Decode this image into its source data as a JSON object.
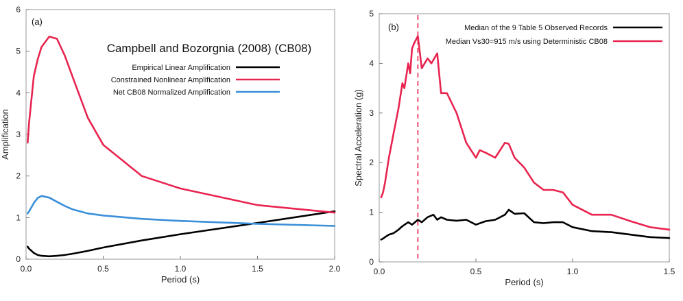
{
  "chart_data": [
    {
      "type": "line",
      "panel_label": "(a)",
      "title": "Campbell and Bozorgnia (2008) (CB08)",
      "xlabel": "Period (s)",
      "ylabel": "Amplification",
      "xlim": [
        0,
        2.0
      ],
      "ylim": [
        0,
        6
      ],
      "xticks": [
        "0.0",
        "0.5",
        "1.0",
        "1.5",
        "2.0"
      ],
      "yticks": [
        "0",
        "1",
        "2",
        "3",
        "4",
        "5",
        "6"
      ],
      "legend_position": "upper-right",
      "grid": false,
      "series": [
        {
          "name": "Empirical Linear Amplification",
          "color": "#000000",
          "x": [
            0.01,
            0.02,
            0.05,
            0.075,
            0.1,
            0.15,
            0.2,
            0.25,
            0.3,
            0.4,
            0.5,
            0.75,
            1.0,
            1.5,
            2.0
          ],
          "y": [
            0.3,
            0.25,
            0.15,
            0.1,
            0.08,
            0.07,
            0.08,
            0.1,
            0.13,
            0.2,
            0.28,
            0.45,
            0.6,
            0.87,
            1.15
          ]
        },
        {
          "name": "Constrained Nonlinear Amplification",
          "color": "#e8244f",
          "x": [
            0.01,
            0.02,
            0.05,
            0.075,
            0.1,
            0.15,
            0.2,
            0.25,
            0.3,
            0.4,
            0.5,
            0.75,
            1.0,
            1.5,
            2.0
          ],
          "y": [
            2.8,
            3.3,
            4.4,
            4.8,
            5.1,
            5.35,
            5.3,
            4.9,
            4.4,
            3.4,
            2.75,
            2.0,
            1.7,
            1.3,
            1.12
          ]
        },
        {
          "name": "Net CB08 Normalized Amplification",
          "color": "#3a8fd8",
          "x": [
            0.01,
            0.02,
            0.05,
            0.075,
            0.1,
            0.15,
            0.2,
            0.25,
            0.3,
            0.4,
            0.5,
            0.75,
            1.0,
            1.5,
            2.0
          ],
          "y": [
            1.1,
            1.15,
            1.35,
            1.47,
            1.52,
            1.48,
            1.38,
            1.28,
            1.2,
            1.1,
            1.05,
            0.97,
            0.92,
            0.85,
            0.8
          ]
        }
      ]
    },
    {
      "type": "line",
      "panel_label": "(b)",
      "title": "",
      "xlabel": "Period (s)",
      "ylabel": "Spectral Acceleration (g)",
      "xlim": [
        0,
        1.5
      ],
      "ylim": [
        0,
        5
      ],
      "xticks": [
        "0.0",
        "0.5",
        "1.0",
        "1.5"
      ],
      "yticks": [
        "0",
        "1",
        "2",
        "3",
        "4",
        "5"
      ],
      "legend_position": "upper-right",
      "grid": false,
      "vline": {
        "x": 0.2,
        "color": "#e8244f",
        "style": "dashed"
      },
      "series": [
        {
          "name": "Median of the 9 Table 5 Observed Records",
          "color": "#000000",
          "x": [
            0.01,
            0.02,
            0.03,
            0.05,
            0.075,
            0.1,
            0.12,
            0.15,
            0.17,
            0.2,
            0.22,
            0.25,
            0.28,
            0.3,
            0.32,
            0.35,
            0.4,
            0.45,
            0.5,
            0.55,
            0.6,
            0.65,
            0.67,
            0.7,
            0.75,
            0.8,
            0.85,
            0.9,
            0.95,
            1.0,
            1.1,
            1.2,
            1.3,
            1.4,
            1.5
          ],
          "y": [
            0.45,
            0.47,
            0.5,
            0.55,
            0.58,
            0.65,
            0.72,
            0.8,
            0.75,
            0.85,
            0.8,
            0.9,
            0.95,
            0.85,
            0.9,
            0.85,
            0.83,
            0.85,
            0.75,
            0.82,
            0.85,
            0.95,
            1.05,
            0.97,
            0.98,
            0.8,
            0.78,
            0.8,
            0.8,
            0.7,
            0.62,
            0.6,
            0.55,
            0.5,
            0.48
          ]
        },
        {
          "name": "Median Vs30=915 m/s using Deterministic CB08",
          "color": "#e8244f",
          "x": [
            0.01,
            0.02,
            0.03,
            0.05,
            0.075,
            0.1,
            0.12,
            0.13,
            0.15,
            0.16,
            0.17,
            0.18,
            0.2,
            0.22,
            0.25,
            0.27,
            0.3,
            0.32,
            0.35,
            0.4,
            0.45,
            0.5,
            0.52,
            0.55,
            0.6,
            0.65,
            0.67,
            0.7,
            0.75,
            0.8,
            0.85,
            0.9,
            0.95,
            1.0,
            1.1,
            1.2,
            1.3,
            1.4,
            1.5
          ],
          "y": [
            1.3,
            1.4,
            1.6,
            2.1,
            2.6,
            3.1,
            3.6,
            3.5,
            4.0,
            3.8,
            4.3,
            4.4,
            4.55,
            3.9,
            4.1,
            4.0,
            4.2,
            3.4,
            3.4,
            3.0,
            2.4,
            2.1,
            2.25,
            2.2,
            2.1,
            2.4,
            2.38,
            2.1,
            1.9,
            1.6,
            1.45,
            1.45,
            1.4,
            1.15,
            0.95,
            0.95,
            0.82,
            0.7,
            0.65
          ]
        }
      ]
    }
  ]
}
